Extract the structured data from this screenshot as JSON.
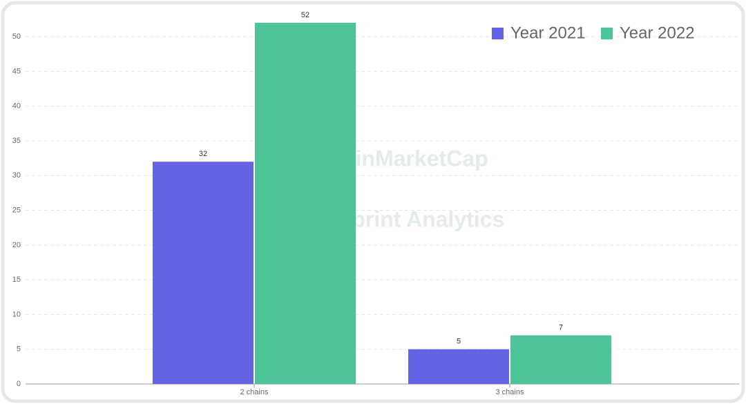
{
  "chart_data": {
    "type": "bar",
    "categories": [
      "2 chains",
      "3 chains"
    ],
    "series": [
      {
        "name": "Year 2021",
        "color": "#6464e4",
        "values": [
          32,
          5
        ]
      },
      {
        "name": "Year 2022",
        "color": "#4cc497",
        "values": [
          52,
          7
        ]
      }
    ],
    "ylim": [
      0,
      52
    ],
    "yticks": [
      0,
      5,
      10,
      15,
      20,
      25,
      30,
      35,
      40,
      45,
      50
    ],
    "grid": true,
    "legend": "top-right",
    "watermarks": [
      "CoinMarketCap",
      "Footprint Analytics"
    ]
  }
}
